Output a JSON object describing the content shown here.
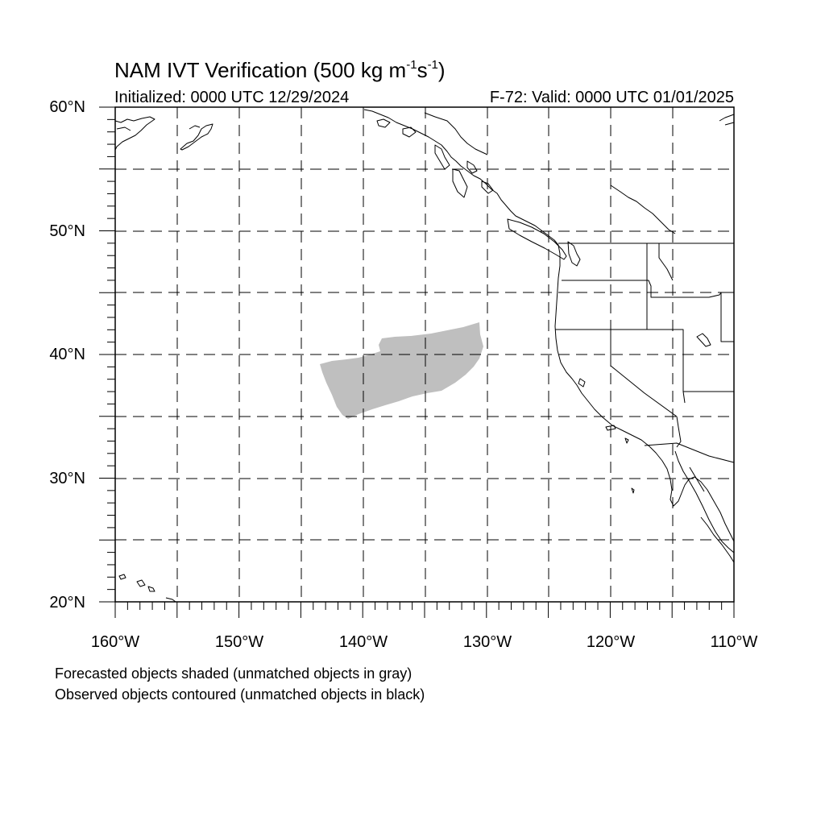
{
  "header": {
    "title_prefix": "NAM IVT Verification (500 kg m",
    "title_sup1": "-1",
    "title_mid": "s",
    "title_sup2": "-1",
    "title_suffix": ")",
    "initialized": "Initialized: 0000 UTC 12/29/2024",
    "valid": "F-72: Valid: 0000 UTC 01/01/2025"
  },
  "axes": {
    "lat_labels": [
      "60°N",
      "50°N",
      "40°N",
      "30°N",
      "20°N"
    ],
    "lon_labels": [
      "160°W",
      "150°W",
      "140°W",
      "130°W",
      "120°W",
      "110°W"
    ],
    "lat_range": [
      20,
      60
    ],
    "lon_range": [
      -160,
      -110
    ],
    "grid_interval_deg": 5
  },
  "legend": {
    "line1": "Forecasted objects shaded (unmatched objects in gray)",
    "line2": "Observed objects contoured (unmatched objects in black)"
  },
  "colors": {
    "forecast_unmatched": "#bfbfbf",
    "coastline": "#000000",
    "grid": "#000000"
  }
}
